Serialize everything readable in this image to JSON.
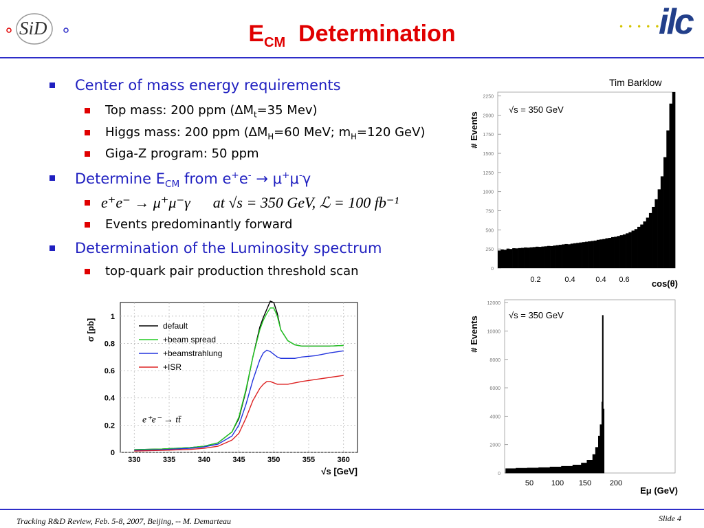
{
  "header": {
    "logo_left": "SiD",
    "title_main": "E",
    "title_sub": "CM",
    "title_rest": "Determination",
    "logo_right": "ilc"
  },
  "bullets": {
    "b1": "Center of mass energy requirements",
    "b1_s1_a": "Top mass: 200 ppm (∆M",
    "b1_s1_sub": "t",
    "b1_s1_b": "=35 Mev)",
    "b1_s2_a": "Higgs mass: 200 ppm (∆M",
    "b1_s2_sub1": "H",
    "b1_s2_b": "=60 MeV; m",
    "b1_s2_sub2": "H",
    "b1_s2_c": "=120 GeV)",
    "b1_s3": "Giga-Z program: 50 ppm",
    "b2_a": "Determine E",
    "b2_sub": "CM",
    "b2_b": " from e",
    "b2_sup1": "+",
    "b2_c": "e",
    "b2_sup2": "-",
    "b2_d": " → μ",
    "b2_sup3": "+",
    "b2_e": "μ",
    "b2_sup4": "-",
    "b2_f": "γ",
    "b2_eq": "e⁺e⁻ → μ⁺μ⁻γ      at √s = 350 GeV, ℒ = 100 fb⁻¹",
    "b2_s2": "Events predominantly forward",
    "b3": "Determination of the Luminosity spectrum",
    "b3_s1": "top-quark pair production threshold scan"
  },
  "credit": "Tim Barklow",
  "footer": {
    "left": "Tracking R&D Review, Feb. 5-8, 2007, Beijing, -- M. Demarteau",
    "right": "Slide 4"
  },
  "chart_data": [
    {
      "type": "line",
      "ylabel": "σ [pb]",
      "xlabel": "√s [GeV]",
      "xlim": [
        328,
        362
      ],
      "ylim": [
        0,
        1.1
      ],
      "xticks": [
        "330",
        "335",
        "340",
        "345",
        "350",
        "355",
        "360"
      ],
      "yticks": [
        "0",
        "0.2",
        "0.4",
        "0.6",
        "0.8",
        "1"
      ],
      "annotation": "e⁺e⁻ → tt̄",
      "legend_position": "top-left",
      "x": [
        330,
        334,
        338,
        340,
        342,
        344,
        345,
        346,
        347,
        348,
        348.5,
        349,
        349.5,
        350,
        350.5,
        351,
        352,
        353,
        354,
        356,
        358,
        360
      ],
      "series": [
        {
          "name": "default",
          "color": "#000000",
          "values": [
            0.02,
            0.025,
            0.035,
            0.045,
            0.07,
            0.15,
            0.25,
            0.45,
            0.7,
            0.92,
            0.99,
            1.05,
            1.11,
            1.1,
            1.02,
            0.9,
            0.82,
            0.79,
            0.78,
            0.78,
            0.78,
            0.785
          ]
        },
        {
          "name": "+beam spread",
          "color": "#22cc22",
          "values": [
            0.02,
            0.025,
            0.035,
            0.045,
            0.07,
            0.15,
            0.26,
            0.46,
            0.7,
            0.9,
            0.97,
            1.02,
            1.06,
            1.06,
            1.0,
            0.9,
            0.82,
            0.79,
            0.78,
            0.78,
            0.78,
            0.785
          ]
        },
        {
          "name": "+beamstrahlung",
          "color": "#2233dd",
          "values": [
            0.015,
            0.02,
            0.03,
            0.04,
            0.06,
            0.12,
            0.2,
            0.35,
            0.53,
            0.68,
            0.73,
            0.75,
            0.74,
            0.72,
            0.7,
            0.69,
            0.69,
            0.69,
            0.7,
            0.71,
            0.73,
            0.745
          ]
        },
        {
          "name": "+ISR",
          "color": "#dd2222",
          "values": [
            0.01,
            0.015,
            0.022,
            0.03,
            0.045,
            0.09,
            0.14,
            0.25,
            0.38,
            0.47,
            0.5,
            0.52,
            0.52,
            0.51,
            0.5,
            0.5,
            0.5,
            0.51,
            0.52,
            0.535,
            0.55,
            0.565
          ]
        }
      ]
    },
    {
      "type": "bar",
      "ylabel": "# Events",
      "xlabel": "cos(θ)",
      "annotation": "√s = 350 GeV",
      "xlim": [
        0,
        1
      ],
      "ylim": [
        0,
        2300
      ],
      "yticks": [
        "0",
        "250",
        "500",
        "750",
        "1000",
        "1250",
        "1500",
        "1750",
        "2000",
        "2250"
      ],
      "xtick_overlay": [
        "0.2",
        "0.4",
        "0.4",
        "0.6"
      ],
      "values": [
        230,
        245,
        240,
        255,
        250,
        260,
        258,
        262,
        265,
        270,
        268,
        272,
        275,
        280,
        278,
        282,
        285,
        290,
        288,
        295,
        300,
        305,
        310,
        315,
        312,
        320,
        325,
        330,
        335,
        340,
        345,
        350,
        355,
        360,
        370,
        375,
        380,
        390,
        395,
        405,
        410,
        420,
        430,
        440,
        455,
        470,
        490,
        510,
        540,
        570,
        610,
        660,
        720,
        800,
        900,
        1030,
        1200,
        1450,
        1800,
        2150,
        2300
      ]
    },
    {
      "type": "bar",
      "ylabel": "# Events",
      "xlabel": "Eμ (GeV)",
      "annotation": "√s = 350 GeV",
      "xlim": [
        0,
        300
      ],
      "ylim": [
        0,
        12200
      ],
      "yticks": [
        "0",
        "2000",
        "4000",
        "6000",
        "8000",
        "10000",
        "12000"
      ],
      "xtick_overlay": [
        "50",
        "100",
        "150",
        "200"
      ],
      "values": [
        {
          "x": 2,
          "y": 300
        },
        {
          "x": 20,
          "y": 330
        },
        {
          "x": 40,
          "y": 350
        },
        {
          "x": 60,
          "y": 380
        },
        {
          "x": 80,
          "y": 420
        },
        {
          "x": 100,
          "y": 470
        },
        {
          "x": 120,
          "y": 560
        },
        {
          "x": 135,
          "y": 700
        },
        {
          "x": 145,
          "y": 900
        },
        {
          "x": 155,
          "y": 1300
        },
        {
          "x": 160,
          "y": 1800
        },
        {
          "x": 165,
          "y": 2600
        },
        {
          "x": 168,
          "y": 3400
        },
        {
          "x": 171,
          "y": 5000
        },
        {
          "x": 172,
          "y": 11100
        },
        {
          "x": 173.5,
          "y": 4500
        }
      ]
    }
  ]
}
